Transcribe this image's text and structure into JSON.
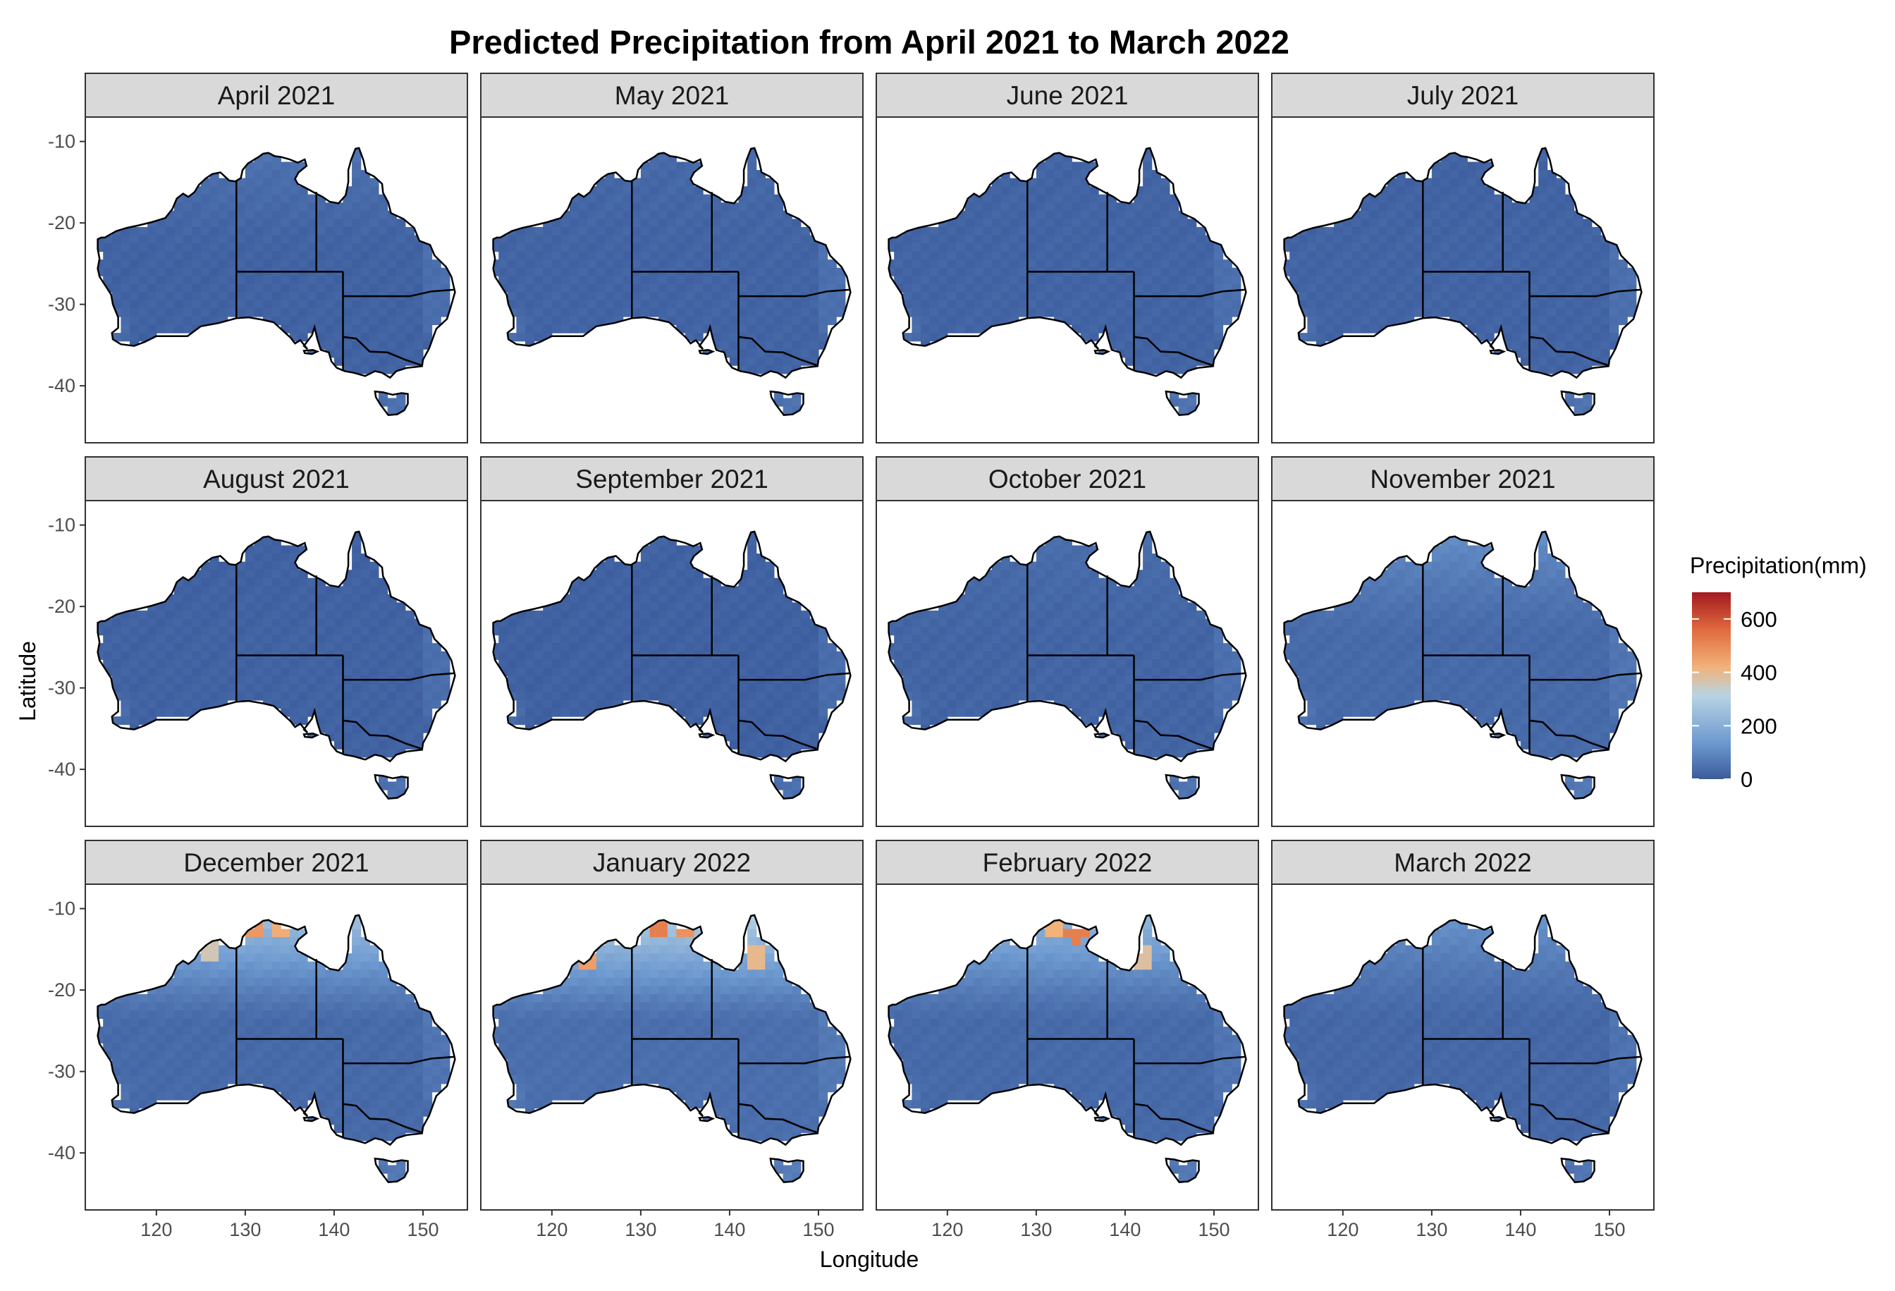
{
  "chart_data": {
    "type": "heatmap",
    "title": "Predicted Precipitation from April 2021 to March 2022",
    "xlabel": "Longitude",
    "ylabel": "Latitude",
    "xlim": [
      112,
      155
    ],
    "ylim": [
      -47,
      -7
    ],
    "x_ticks": [
      120,
      130,
      140,
      150
    ],
    "y_ticks": [
      -10,
      -20,
      -30,
      -40
    ],
    "x_tick_labels": [
      "120",
      "130",
      "140",
      "150"
    ],
    "y_tick_labels": [
      "-10",
      "-20",
      "-30",
      "-40"
    ],
    "legend": {
      "title": "Precipitation(mm)",
      "range": [
        0,
        700
      ],
      "ticks": [
        0,
        200,
        400,
        600
      ],
      "tick_labels": [
        "0",
        "200",
        "400",
        "600"
      ],
      "colors": [
        "#3b5b9c",
        "#6f9bd1",
        "#b9d3e2",
        "#f2b27a",
        "#e06a3d",
        "#a3191f"
      ],
      "placement": "right"
    },
    "panels": [
      {
        "label": "April 2021",
        "north_peak_mm": 50,
        "base_mm": 15
      },
      {
        "label": "May 2021",
        "north_peak_mm": 30,
        "base_mm": 18
      },
      {
        "label": "June 2021",
        "north_peak_mm": 20,
        "base_mm": 18
      },
      {
        "label": "July 2021",
        "north_peak_mm": 15,
        "base_mm": 18
      },
      {
        "label": "August 2021",
        "north_peak_mm": 12,
        "base_mm": 15
      },
      {
        "label": "September 2021",
        "north_peak_mm": 15,
        "base_mm": 12
      },
      {
        "label": "October 2021",
        "north_peak_mm": 40,
        "base_mm": 20
      },
      {
        "label": "November 2021",
        "north_peak_mm": 110,
        "base_mm": 30
      },
      {
        "label": "December 2021",
        "north_peak_mm": 250,
        "base_mm": 30,
        "hotspots_mm": [
          {
            "lon": 131,
            "lat": -12,
            "value": 470
          },
          {
            "lon": 134,
            "lat": -12,
            "value": 430
          },
          {
            "lon": 126,
            "lat": -15,
            "value": 360
          }
        ]
      },
      {
        "label": "January 2022",
        "north_peak_mm": 300,
        "base_mm": 40,
        "hotspots_mm": [
          {
            "lon": 124,
            "lat": -16,
            "value": 460
          },
          {
            "lon": 132,
            "lat": -12,
            "value": 520
          },
          {
            "lon": 135,
            "lat": -12,
            "value": 480
          },
          {
            "lon": 143,
            "lat": -16,
            "value": 400
          }
        ]
      },
      {
        "label": "February 2022",
        "north_peak_mm": 220,
        "base_mm": 30,
        "hotspots_mm": [
          {
            "lon": 132,
            "lat": -12,
            "value": 420
          },
          {
            "lon": 134.5,
            "lat": -13,
            "value": 520
          },
          {
            "lon": 142,
            "lat": -16,
            "value": 380
          }
        ]
      },
      {
        "label": "March 2022",
        "north_peak_mm": 120,
        "base_mm": 25
      }
    ]
  }
}
